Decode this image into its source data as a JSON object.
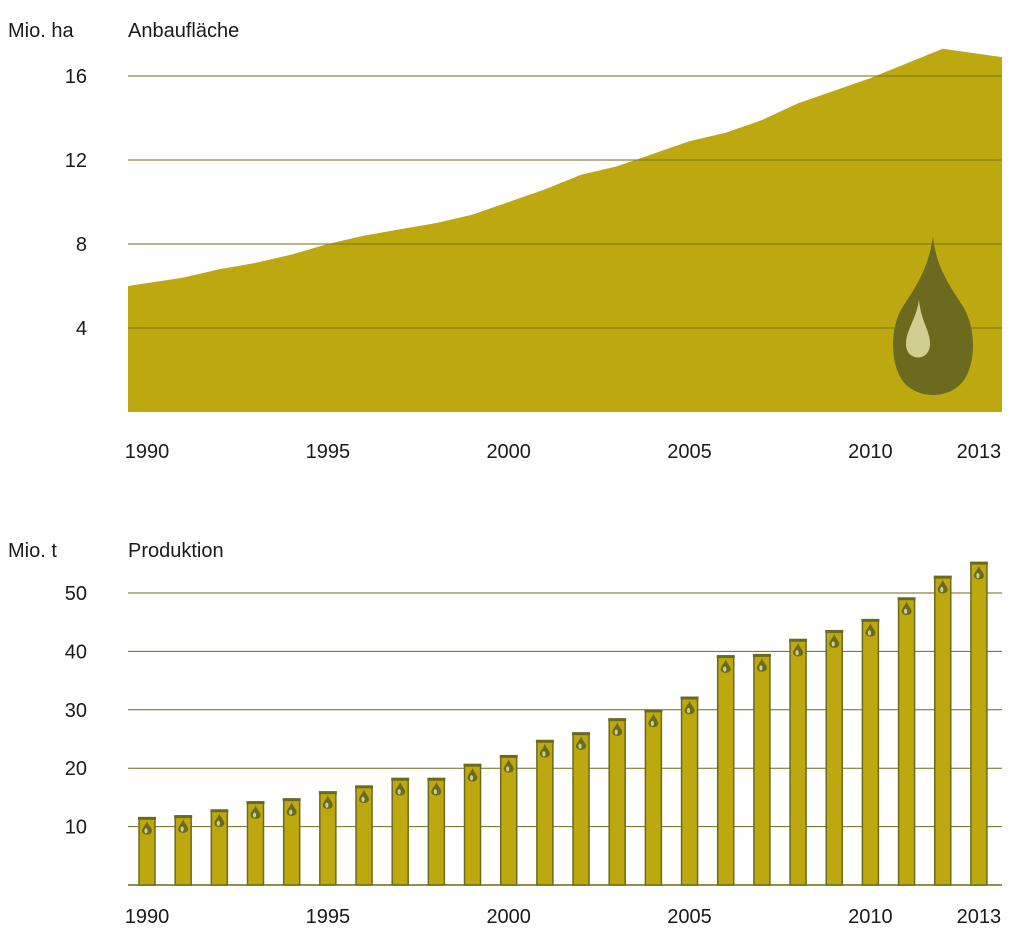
{
  "colors": {
    "fill": "#bea810",
    "grid": "#6b6a1c",
    "bar_edge": "#6b6a1c",
    "drop_dark": "#6a6b1e",
    "drop_light": "#cfd08f"
  },
  "icons": [
    "oil-drop-icon"
  ],
  "chart_data": [
    {
      "type": "area",
      "title": "Anbaufläche",
      "ylabel": "Mio. ha",
      "ylim": [
        0,
        17.5
      ],
      "yticks": [
        4,
        8,
        12,
        16
      ],
      "ytick_labels": [
        "4",
        "8",
        "12",
        "16"
      ],
      "xticks": [
        1990,
        1995,
        2000,
        2005,
        2010,
        2013
      ],
      "xtick_labels": [
        "1990",
        "1995",
        "2000",
        "2005",
        "2010",
        "2013"
      ],
      "grid": true,
      "x": [
        1990,
        1991,
        1992,
        1993,
        1994,
        1995,
        1996,
        1997,
        1998,
        1999,
        2000,
        2001,
        2002,
        2003,
        2004,
        2005,
        2006,
        2007,
        2008,
        2009,
        2010,
        2011,
        2012,
        2013
      ],
      "values": [
        6.0,
        6.4,
        6.8,
        7.1,
        7.5,
        8.0,
        8.4,
        8.7,
        9.0,
        9.4,
        10.0,
        10.6,
        11.3,
        11.7,
        12.3,
        12.9,
        13.3,
        13.9,
        14.7,
        15.3,
        15.9,
        16.6,
        17.3,
        16.9
      ]
    },
    {
      "type": "bar",
      "title": "Produktion",
      "ylabel": "Mio. t",
      "ylim": [
        0,
        55
      ],
      "yticks": [
        10,
        20,
        30,
        40,
        50
      ],
      "ytick_labels": [
        "10",
        "20",
        "30",
        "40",
        "50"
      ],
      "xticks": [
        1990,
        1995,
        2000,
        2005,
        2010,
        2013
      ],
      "xtick_labels": [
        "1990",
        "1995",
        "2000",
        "2005",
        "2010",
        "2013"
      ],
      "grid": true,
      "categories": [
        1990,
        1991,
        1992,
        1993,
        1994,
        1995,
        1996,
        1997,
        1998,
        1999,
        2000,
        2001,
        2002,
        2003,
        2004,
        2005,
        2006,
        2007,
        2008,
        2009,
        2010,
        2011,
        2012,
        2013
      ],
      "values": [
        11.5,
        11.8,
        12.8,
        14.2,
        14.7,
        15.9,
        16.9,
        18.2,
        18.2,
        20.6,
        22.1,
        24.7,
        26.0,
        28.4,
        29.9,
        32.1,
        39.2,
        39.4,
        42.0,
        43.5,
        45.4,
        49.1,
        52.8,
        55.2
      ]
    }
  ]
}
